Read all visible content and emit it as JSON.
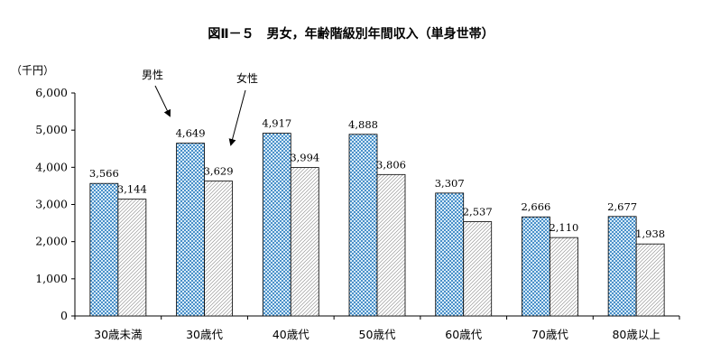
{
  "chart_data": {
    "type": "bar",
    "title": "図Ⅱ－５　男女，年齢階級別年間収入（単身世帯）",
    "unit_label": "（千円）",
    "categories": [
      "30歳未満",
      "30歳代",
      "40歳代",
      "50歳代",
      "60歳代",
      "70歳代",
      "80歳以上"
    ],
    "series": [
      {
        "name": "男性",
        "values": [
          3566,
          4649,
          4917,
          4888,
          3307,
          2666,
          2677
        ],
        "labels": [
          "3,566",
          "4,649",
          "4,917",
          "4,888",
          "3,307",
          "2,666",
          "2,677"
        ],
        "color": "#4a90c9"
      },
      {
        "name": "女性",
        "values": [
          3144,
          3629,
          3994,
          3806,
          2537,
          2110,
          1938
        ],
        "labels": [
          "3,144",
          "3,629",
          "3,994",
          "3,806",
          "2,537",
          "2,110",
          "1,938"
        ],
        "color": "#ffffff"
      }
    ],
    "yticks": [
      0,
      1000,
      2000,
      3000,
      4000,
      5000,
      6000
    ],
    "ytick_labels": [
      "0",
      "1,000",
      "2,000",
      "3,000",
      "4,000",
      "5,000",
      "6,000"
    ],
    "ylim": [
      0,
      6000
    ],
    "grid": false,
    "legend": "annotated arrows near 30歳代 bars"
  }
}
